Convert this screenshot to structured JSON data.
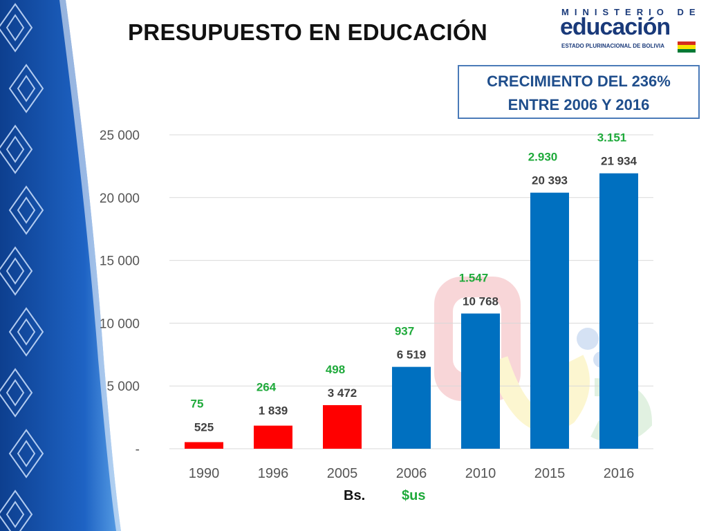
{
  "title": "PRESUPUESTO EN EDUCACIÓN",
  "logo": {
    "line1": "MINISTERIO DE",
    "line2": "educación",
    "line3": "ESTADO PLURINACIONAL DE BOLIVIA",
    "flag_colors": [
      "#d52b1e",
      "#f9e300",
      "#007934"
    ]
  },
  "growth_box": {
    "line1": "CRECIMIENTO DEL 236%",
    "line2": "ENTRE 2006 Y 2016"
  },
  "chart_data": {
    "type": "bar",
    "title": "",
    "xlabel": "",
    "ylabel": "",
    "ylim": [
      0,
      25000
    ],
    "y_ticks": [
      {
        "value": 0,
        "label": "-"
      },
      {
        "value": 5000,
        "label": "5 000"
      },
      {
        "value": 10000,
        "label": "10 000"
      },
      {
        "value": 15000,
        "label": "15 000"
      },
      {
        "value": 20000,
        "label": "20 000"
      },
      {
        "value": 25000,
        "label": "25 000"
      }
    ],
    "grid": true,
    "categories": [
      "1990",
      "1996",
      "2005",
      "2006",
      "2010",
      "2015",
      "2016"
    ],
    "series": [
      {
        "name": "Bs.",
        "values": [
          525,
          1839,
          3472,
          6519,
          10768,
          20393,
          21934
        ],
        "labels": [
          "525",
          "1 839",
          "3 472",
          "6 519",
          "10 768",
          "20 393",
          "21 934"
        ],
        "colors": [
          "#ff0000",
          "#ff0000",
          "#ff0000",
          "#0070c0",
          "#0070c0",
          "#0070c0",
          "#0070c0"
        ]
      },
      {
        "name": "$us",
        "values": [
          75,
          264,
          498,
          937,
          1547,
          2930,
          3151
        ],
        "labels": [
          "75",
          "264",
          "498",
          "937",
          "1.547",
          "2.930",
          "3.151"
        ],
        "color": "#1faa3b"
      }
    ],
    "legend": [
      "Bs.",
      "$us"
    ],
    "legend_placement": "bottom"
  }
}
